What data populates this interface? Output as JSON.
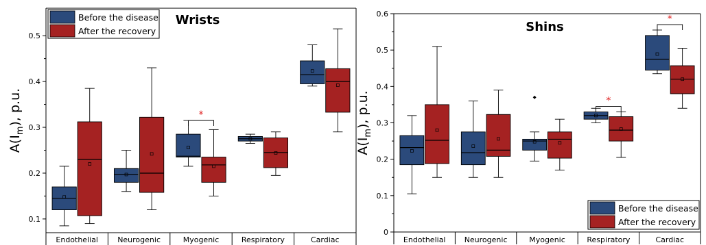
{
  "colors": {
    "before": "#2b4a7b",
    "after": "#a52222",
    "star": "#e02020"
  },
  "chart_data": [
    {
      "type": "box",
      "title": "Wrists",
      "ylabel": "A(I",
      "ylabel_sub": "m",
      "ylabel_suffix": "), p.u.",
      "ylim": [
        0.07,
        0.56
      ],
      "yticks": [
        0.1,
        0.2,
        0.3,
        0.4,
        0.5
      ],
      "ytick_labels": [
        "0.1",
        "0.2",
        "0.3",
        "0.4",
        "0.5"
      ],
      "categories": [
        "Endothelial",
        "Neurogenic",
        "Myogenic",
        "Respiratory",
        "Cardiac"
      ],
      "legend": {
        "placement": "top-left",
        "entries": [
          "Before the disease",
          "After the recovery"
        ]
      },
      "series": [
        {
          "name": "Before the disease",
          "boxes": [
            {
              "min": 0.085,
              "q1": 0.12,
              "median": 0.145,
              "q3": 0.17,
              "max": 0.215,
              "mean": 0.148
            },
            {
              "min": 0.16,
              "q1": 0.18,
              "median": 0.197,
              "q3": 0.21,
              "max": 0.25,
              "mean": 0.197
            },
            {
              "min": 0.215,
              "q1": 0.235,
              "median": 0.237,
              "q3": 0.285,
              "max": 0.315,
              "mean": 0.256
            },
            {
              "min": 0.265,
              "q1": 0.27,
              "median": 0.275,
              "q3": 0.28,
              "max": 0.285,
              "mean": 0.275
            },
            {
              "min": 0.39,
              "q1": 0.395,
              "median": 0.415,
              "q3": 0.445,
              "max": 0.48,
              "mean": 0.423
            }
          ]
        },
        {
          "name": "After the recovery",
          "boxes": [
            {
              "min": 0.09,
              "q1": 0.107,
              "median": 0.23,
              "q3": 0.312,
              "max": 0.385,
              "mean": 0.22
            },
            {
              "min": 0.12,
              "q1": 0.158,
              "median": 0.2,
              "q3": 0.322,
              "max": 0.43,
              "mean": 0.242
            },
            {
              "min": 0.15,
              "q1": 0.18,
              "median": 0.218,
              "q3": 0.235,
              "max": 0.295,
              "mean": 0.215
            },
            {
              "min": 0.195,
              "q1": 0.212,
              "median": 0.245,
              "q3": 0.277,
              "max": 0.29,
              "mean": 0.244
            },
            {
              "min": 0.29,
              "q1": 0.333,
              "median": 0.4,
              "q3": 0.428,
              "max": 0.515,
              "mean": 0.392
            }
          ]
        }
      ],
      "significance": [
        {
          "category": 2,
          "y": 0.315,
          "label": "*"
        }
      ]
    },
    {
      "type": "box",
      "title": "Shins",
      "ylabel": "A(I",
      "ylabel_sub": "m",
      "ylabel_suffix": "), p.u.",
      "ylim": [
        0.0,
        0.6
      ],
      "yticks": [
        0.0,
        0.1,
        0.2,
        0.3,
        0.4,
        0.5,
        0.6
      ],
      "ytick_labels": [
        "0",
        "0.1",
        "0.2",
        "0.3",
        "0.4",
        "0.5",
        "0.6"
      ],
      "categories": [
        "Endothelial",
        "Neurogenic",
        "Myogenic",
        "Respiratory",
        "Cardiac"
      ],
      "legend": {
        "placement": "bottom-right",
        "entries": [
          "Before the disease",
          "After the recovery"
        ]
      },
      "series": [
        {
          "name": "Before the disease",
          "boxes": [
            {
              "min": 0.105,
              "q1": 0.185,
              "median": 0.232,
              "q3": 0.265,
              "max": 0.32,
              "mean": 0.223
            },
            {
              "min": 0.15,
              "q1": 0.185,
              "median": 0.218,
              "q3": 0.275,
              "max": 0.36,
              "mean": 0.236
            },
            {
              "min": 0.195,
              "q1": 0.225,
              "median": 0.25,
              "q3": 0.255,
              "max": 0.275,
              "mean": 0.248,
              "outliers": [
                0.37
              ]
            },
            {
              "min": 0.3,
              "q1": 0.31,
              "median": 0.32,
              "q3": 0.33,
              "max": 0.34,
              "mean": 0.32
            },
            {
              "min": 0.435,
              "q1": 0.445,
              "median": 0.475,
              "q3": 0.54,
              "max": 0.555,
              "mean": 0.489
            }
          ]
        },
        {
          "name": "After the recovery",
          "boxes": [
            {
              "min": 0.15,
              "q1": 0.188,
              "median": 0.252,
              "q3": 0.35,
              "max": 0.51,
              "mean": 0.28
            },
            {
              "min": 0.15,
              "q1": 0.208,
              "median": 0.225,
              "q3": 0.323,
              "max": 0.39,
              "mean": 0.256
            },
            {
              "min": 0.17,
              "q1": 0.203,
              "median": 0.255,
              "q3": 0.275,
              "max": 0.31,
              "mean": 0.245
            },
            {
              "min": 0.205,
              "q1": 0.25,
              "median": 0.28,
              "q3": 0.317,
              "max": 0.33,
              "mean": 0.283
            },
            {
              "min": 0.34,
              "q1": 0.38,
              "median": 0.42,
              "q3": 0.457,
              "max": 0.505,
              "mean": 0.42
            }
          ]
        }
      ],
      "significance": [
        {
          "category": 3,
          "y": 0.345,
          "label": "*"
        },
        {
          "category": 4,
          "y": 0.57,
          "label": "*"
        }
      ]
    }
  ]
}
